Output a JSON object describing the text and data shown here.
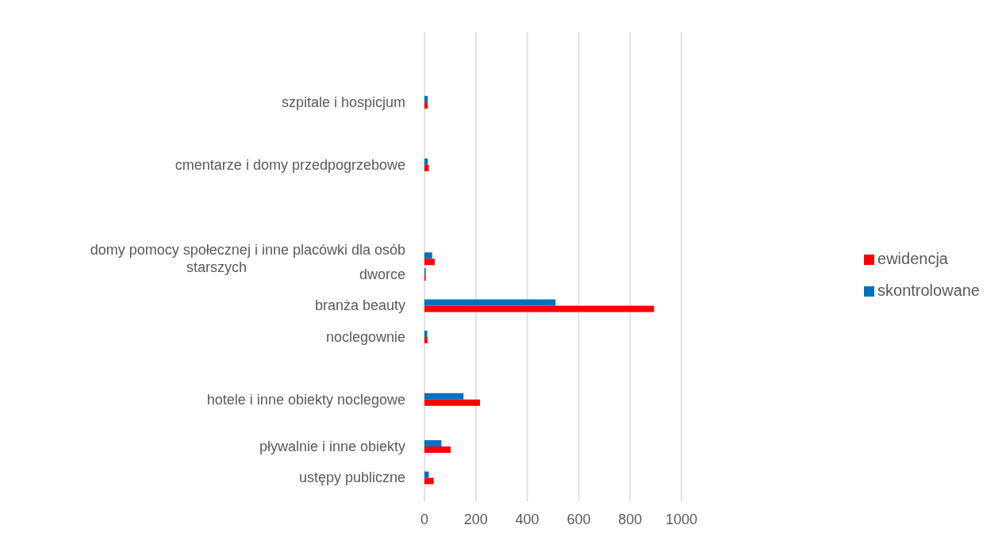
{
  "chart_data": {
    "type": "bar",
    "orientation": "horizontal",
    "categories": [
      null,
      null,
      null,
      null,
      "szpitale i hospicjum",
      null,
      null,
      null,
      "cmentarze i domy przedpogrzebowe",
      null,
      null,
      null,
      null,
      null,
      "domy pomocy społecznej i inne placówki dla osób starszych",
      "dworce",
      null,
      "branża beauty",
      null,
      "noclegownie",
      null,
      null,
      null,
      "hotele i inne obiekty noclegowe",
      null,
      null,
      "pływalnie i inne obiekty",
      null,
      "ustępy publiczne",
      null
    ],
    "series": [
      {
        "name": "skontrolowane",
        "color": "#0070c0",
        "values": [
          null,
          null,
          null,
          null,
          13,
          null,
          null,
          null,
          13,
          null,
          null,
          null,
          null,
          null,
          30,
          5,
          null,
          510,
          null,
          11,
          null,
          null,
          null,
          152,
          null,
          null,
          66,
          null,
          17,
          null
        ]
      },
      {
        "name": "ewidencja",
        "color": "#ff0000",
        "values": [
          null,
          null,
          null,
          null,
          13,
          null,
          null,
          null,
          17,
          null,
          null,
          null,
          null,
          null,
          40,
          5,
          null,
          893,
          null,
          12,
          null,
          null,
          null,
          216,
          null,
          null,
          102,
          null,
          36,
          null
        ]
      }
    ],
    "xlim": [
      0,
      1000
    ],
    "xticks": [
      0,
      200,
      400,
      600,
      800,
      1000
    ],
    "grid": "x",
    "legend": "right"
  }
}
